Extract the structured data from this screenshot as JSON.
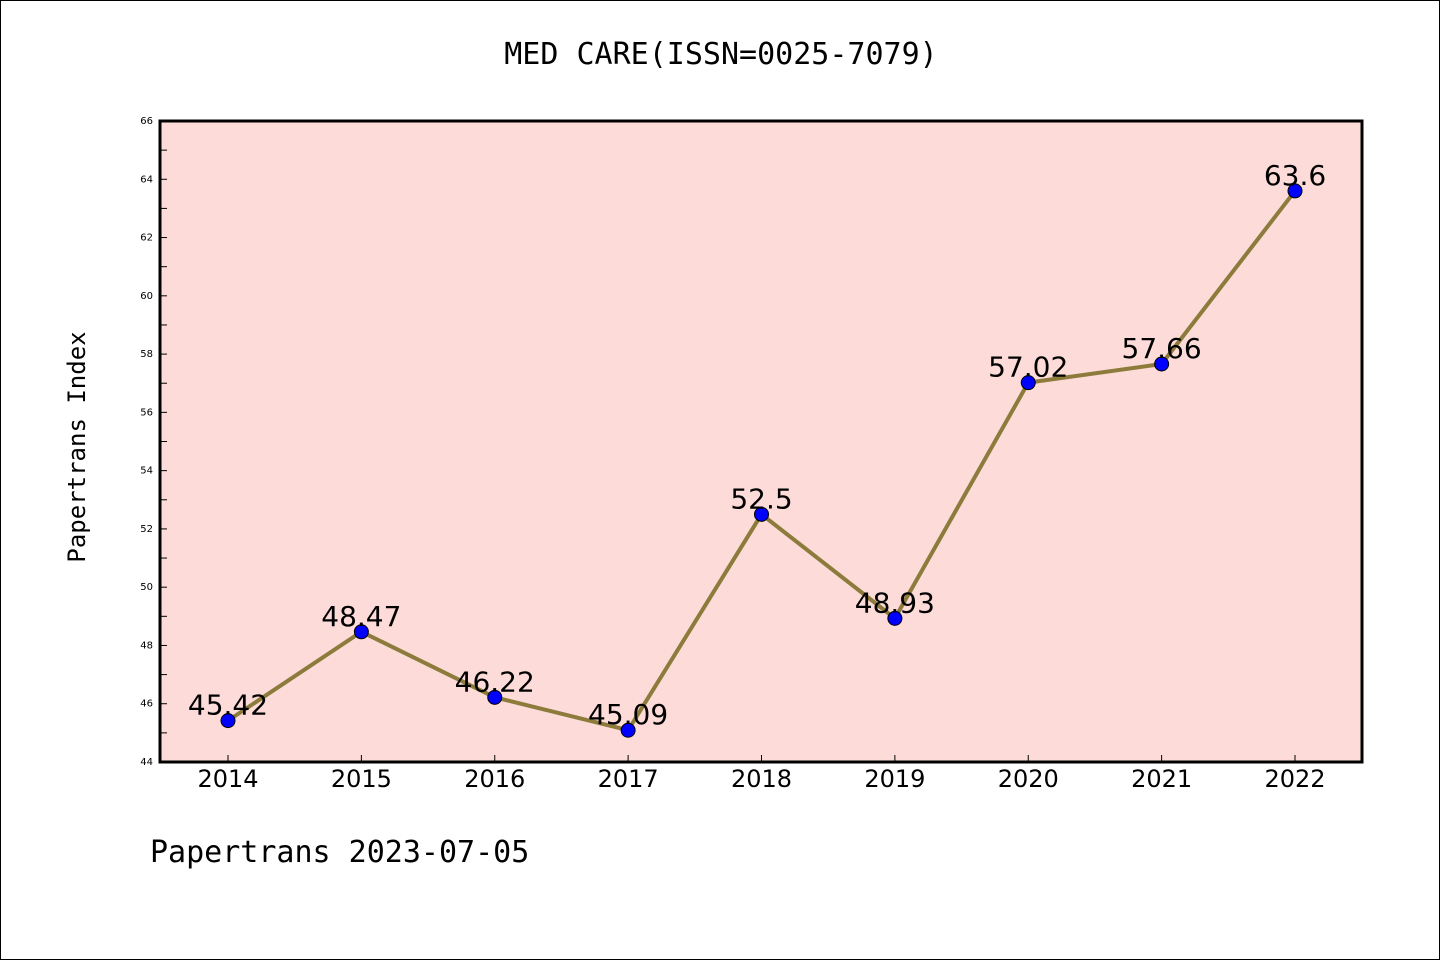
{
  "chart_data": {
    "type": "line",
    "title": "MED CARE(ISSN=0025-7079)",
    "xlabel": "",
    "ylabel": "Papertrans Index",
    "categories": [
      "2014",
      "2015",
      "2016",
      "2017",
      "2018",
      "2019",
      "2020",
      "2021",
      "2022"
    ],
    "series": [
      {
        "values": [
          45.42,
          48.47,
          46.22,
          45.09,
          52.5,
          48.93,
          57.02,
          57.66,
          63.6
        ],
        "data_labels": [
          "45.42",
          "48.47",
          "46.22",
          "45.09",
          "52.5",
          "48.93",
          "57.02",
          "57.66",
          "63.6"
        ]
      }
    ],
    "ylim": [
      44,
      66
    ],
    "yticks": [
      44,
      46,
      48,
      50,
      52,
      54,
      56,
      58,
      60,
      62,
      64,
      66
    ],
    "grid": false,
    "colors": {
      "plot_background": "#fddbd9",
      "line": "#8c7b3a",
      "marker": "#0000ff"
    }
  },
  "footer": "Papertrans 2023-07-05"
}
